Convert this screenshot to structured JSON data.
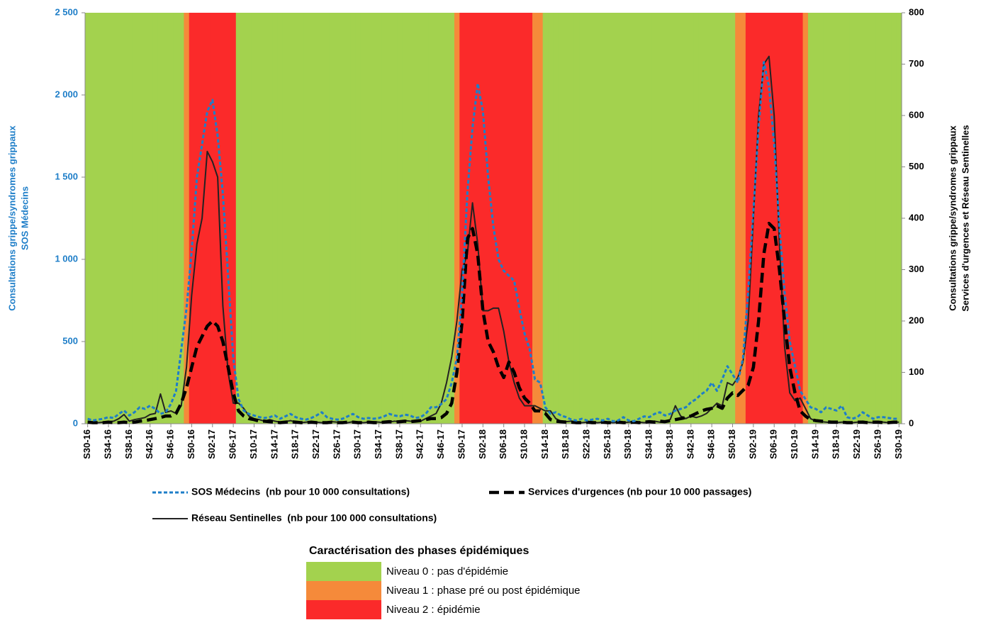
{
  "chart_data": {
    "type": "line",
    "ylabel": [
      "Consultations grippe/syndromes grippaux",
      "SOS Médecins"
    ],
    "y2label": [
      "Consultations grippe/syndromes grippaux",
      "Services d'urgences et Réseau Sentinelles"
    ],
    "categories": [
      "S30-16",
      null,
      null,
      null,
      "S34-16",
      null,
      null,
      null,
      "S38-16",
      null,
      null,
      null,
      "S42-16",
      null,
      null,
      null,
      "S46-16",
      null,
      null,
      null,
      "S50-16",
      null,
      null,
      null,
      "S02-17",
      null,
      null,
      null,
      "S06-17",
      null,
      null,
      null,
      "S10-17",
      null,
      null,
      null,
      "S14-17",
      null,
      null,
      null,
      "S18-17",
      null,
      null,
      null,
      "S22-17",
      null,
      null,
      null,
      "S26-17",
      null,
      null,
      null,
      "S30-17",
      null,
      null,
      null,
      "S34-17",
      null,
      null,
      null,
      "S38-17",
      null,
      null,
      null,
      "S42-17",
      null,
      null,
      null,
      "S46-17",
      null,
      null,
      null,
      "S50-17",
      null,
      null,
      null,
      "S02-18",
      null,
      null,
      null,
      "S06-18",
      null,
      null,
      null,
      "S10-18",
      null,
      null,
      null,
      "S14-18",
      null,
      null,
      null,
      "S18-18",
      null,
      null,
      null,
      "S22-18",
      null,
      null,
      null,
      "S26-18",
      null,
      null,
      null,
      "S30-18",
      null,
      null,
      null,
      "S34-18",
      null,
      null,
      null,
      "S38-18",
      null,
      null,
      null,
      "S42-18",
      null,
      null,
      null,
      "S46-18",
      null,
      null,
      null,
      "S50-18",
      null,
      null,
      null,
      "S02-19",
      null,
      null,
      null,
      "S06-19",
      null,
      null,
      null,
      "S10-19",
      null,
      null,
      null,
      "S14-19",
      null,
      null,
      null,
      "S18-19",
      null,
      null,
      null,
      "S22-19",
      null,
      null,
      null,
      "S26-19",
      null,
      null,
      null,
      "S30-19"
    ],
    "ylim": [
      0,
      2500
    ],
    "yticks": [
      0,
      500,
      {
        "value": 1000,
        "label": "1 000"
      },
      {
        "value": 1500,
        "label": "1 500"
      },
      {
        "value": 2000,
        "label": "2 000"
      },
      {
        "value": 2500,
        "label": "2 500"
      }
    ],
    "y2lim": [
      0,
      800
    ],
    "y2ticks": [
      0,
      100,
      200,
      300,
      400,
      500,
      600,
      700,
      800
    ],
    "series": [
      {
        "name": "SOS Médecins  (nb pour 10 000 consultations)",
        "color": "#1e7ec8",
        "style": "dotted",
        "axis": "y",
        "values": [
          30,
          20,
          25,
          30,
          40,
          35,
          60,
          80,
          50,
          70,
          100,
          90,
          110,
          90,
          60,
          70,
          120,
          200,
          450,
          700,
          1050,
          1500,
          1700,
          1900,
          1970,
          1750,
          1400,
          900,
          400,
          150,
          80,
          60,
          50,
          40,
          35,
          40,
          50,
          30,
          45,
          60,
          40,
          30,
          25,
          35,
          50,
          70,
          40,
          30,
          25,
          30,
          45,
          60,
          40,
          30,
          35,
          30,
          35,
          45,
          60,
          50,
          45,
          55,
          50,
          35,
          40,
          60,
          100,
          100,
          120,
          150,
          250,
          400,
          800,
          1400,
          1800,
          2070,
          1900,
          1500,
          1200,
          1000,
          930,
          900,
          870,
          700,
          550,
          450,
          270,
          250,
          100,
          60,
          70,
          50,
          40,
          25,
          20,
          30,
          20,
          25,
          30,
          20,
          30,
          15,
          20,
          40,
          20,
          15,
          30,
          45,
          40,
          60,
          70,
          50,
          60,
          80,
          90,
          100,
          130,
          150,
          180,
          200,
          250,
          200,
          270,
          350,
          300,
          250,
          400,
          800,
          1300,
          1800,
          2200,
          2050,
          1700,
          1200,
          800,
          500,
          350,
          200,
          150,
          100,
          90,
          70,
          100,
          90,
          80,
          110,
          40,
          30,
          40,
          70,
          50,
          30,
          40,
          40,
          35,
          30,
          30
        ]
      },
      {
        "name": "Services d'urgences (nb pour 10 000 passages)",
        "color": "#000000",
        "style": "dashed",
        "axis": "y2",
        "values": [
          3,
          2,
          2,
          2,
          3,
          2,
          2,
          3,
          2,
          3,
          5,
          6,
          8,
          10,
          12,
          15,
          15,
          20,
          40,
          70,
          110,
          150,
          170,
          190,
          200,
          190,
          160,
          110,
          60,
          25,
          15,
          10,
          8,
          5,
          5,
          4,
          3,
          2,
          3,
          4,
          3,
          2,
          2,
          3,
          2,
          2,
          2,
          3,
          2,
          2,
          3,
          3,
          2,
          2,
          3,
          2,
          2,
          3,
          4,
          3,
          4,
          5,
          4,
          5,
          6,
          8,
          10,
          10,
          12,
          20,
          40,
          100,
          200,
          360,
          380,
          330,
          220,
          160,
          140,
          110,
          90,
          120,
          100,
          70,
          50,
          40,
          25,
          25,
          20,
          8,
          5,
          4,
          3,
          3,
          2,
          2,
          3,
          2,
          2,
          3,
          2,
          2,
          3,
          2,
          2,
          3,
          2,
          3,
          4,
          3,
          5,
          4,
          6,
          8,
          10,
          12,
          15,
          20,
          25,
          28,
          30,
          35,
          30,
          50,
          60,
          55,
          65,
          75,
          110,
          200,
          330,
          390,
          380,
          300,
          200,
          110,
          60,
          25,
          15,
          8,
          6,
          5,
          4,
          3,
          3,
          3,
          2,
          2,
          3,
          3,
          2,
          3,
          3,
          2,
          2,
          3,
          3
        ]
      },
      {
        "name": "Réseau Sentinelles  (nb pour 100 000 consultations)",
        "color": "#222222",
        "style": "solid",
        "axis": "y2",
        "values": [
          5,
          2,
          2,
          3,
          4,
          5,
          10,
          18,
          5,
          8,
          10,
          12,
          18,
          20,
          58,
          22,
          25,
          20,
          35,
          110,
          250,
          350,
          400,
          530,
          510,
          480,
          230,
          100,
          40,
          40,
          30,
          15,
          10,
          8,
          5,
          8,
          5,
          3,
          4,
          6,
          3,
          2,
          3,
          4,
          3,
          2,
          3,
          4,
          3,
          2,
          2,
          4,
          3,
          2,
          3,
          4,
          3,
          2,
          3,
          5,
          4,
          6,
          5,
          4,
          5,
          10,
          15,
          20,
          40,
          80,
          130,
          200,
          300,
          330,
          430,
          350,
          220,
          220,
          225,
          225,
          180,
          120,
          80,
          50,
          35,
          35,
          35,
          30,
          25,
          25,
          10,
          5,
          4,
          5,
          3,
          2,
          3,
          4,
          2,
          3,
          3,
          2,
          3,
          2,
          3,
          4,
          3,
          2,
          3,
          5,
          3,
          4,
          8,
          35,
          15,
          10,
          15,
          12,
          15,
          20,
          30,
          40,
          35,
          80,
          75,
          90,
          120,
          200,
          400,
          600,
          700,
          715,
          600,
          350,
          150,
          60,
          45,
          50,
          30,
          10,
          5,
          4,
          3,
          2,
          2,
          3,
          3,
          2,
          3,
          5,
          3,
          2,
          3,
          3,
          2,
          3,
          3
        ]
      }
    ],
    "phase_legend_title": "Caractérisation des phases épidémiques",
    "phase_levels": [
      {
        "label": "Niveau 0 : pas d'épidémie",
        "color": "#a3d24e"
      },
      {
        "label": "Niveau 1 : phase pré ou post épidémique",
        "color": "#f58a3a"
      },
      {
        "label": "Niveau 2 : épidémie",
        "color": "#fb2a2a"
      }
    ],
    "phases": [
      0,
      0,
      0,
      0,
      0,
      0,
      0,
      0,
      0,
      0,
      0,
      0,
      0,
      0,
      0,
      0,
      0,
      0,
      0,
      1,
      2,
      2,
      2,
      2,
      2,
      2,
      2,
      2,
      2,
      0,
      0,
      0,
      0,
      0,
      0,
      0,
      0,
      0,
      0,
      0,
      0,
      0,
      0,
      0,
      0,
      0,
      0,
      0,
      0,
      0,
      0,
      0,
      0,
      0,
      0,
      0,
      0,
      0,
      0,
      0,
      0,
      0,
      0,
      0,
      0,
      0,
      0,
      0,
      0,
      0,
      0,
      1,
      2,
      2,
      2,
      2,
      2,
      2,
      2,
      2,
      2,
      2,
      2,
      2,
      2,
      2,
      1,
      1,
      0,
      0,
      0,
      0,
      0,
      0,
      0,
      0,
      0,
      0,
      0,
      0,
      0,
      0,
      0,
      0,
      0,
      0,
      0,
      0,
      0,
      0,
      0,
      0,
      0,
      0,
      0,
      0,
      0,
      0,
      0,
      0,
      0,
      0,
      0,
      0,
      0,
      1,
      1,
      2,
      2,
      2,
      2,
      2,
      2,
      2,
      2,
      2,
      2,
      2,
      1,
      0,
      0,
      0,
      0,
      0,
      0,
      0,
      0,
      0,
      0,
      0,
      0,
      0,
      0,
      0,
      0,
      0,
      0
    ]
  }
}
